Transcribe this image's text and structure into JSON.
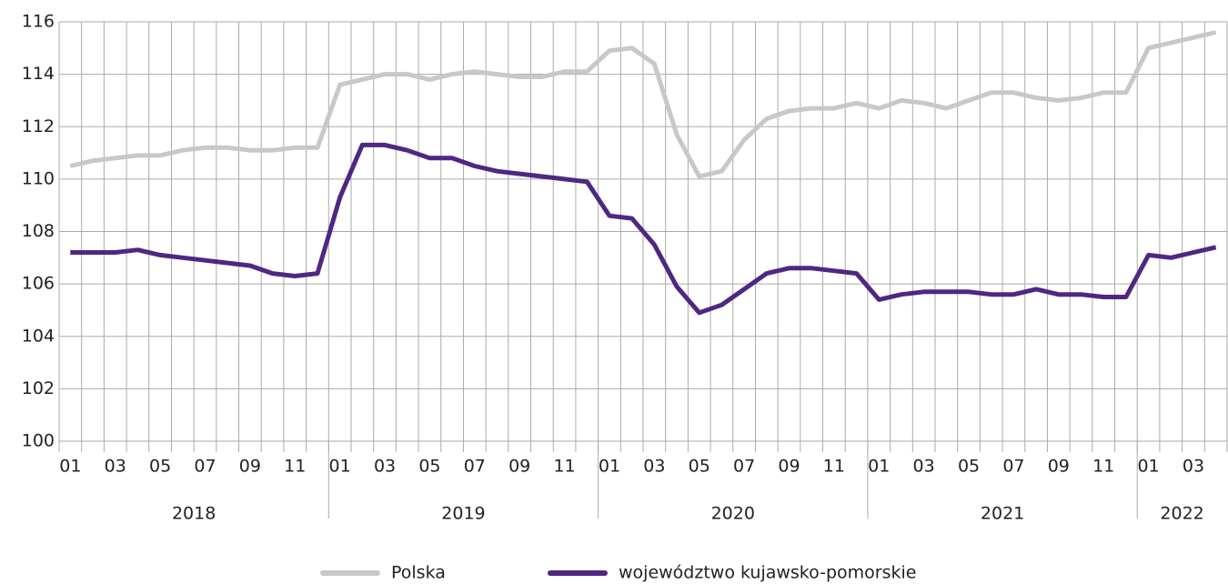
{
  "chart_data": {
    "type": "line",
    "categories": [
      "01",
      null,
      "03",
      null,
      "05",
      null,
      "07",
      null,
      "09",
      null,
      "11",
      null,
      "01",
      null,
      "03",
      null,
      "05",
      null,
      "07",
      null,
      "09",
      null,
      "11",
      null,
      "01",
      null,
      "03",
      null,
      "05",
      null,
      "07",
      null,
      "09",
      null,
      "11",
      null,
      "01",
      null,
      "03",
      null,
      "05",
      null,
      "07",
      null,
      "09",
      null,
      "11",
      null,
      "01",
      null,
      "03",
      null
    ],
    "years": [
      "2018",
      "2019",
      "2020",
      "2021",
      "2022"
    ],
    "series": [
      {
        "name": "Polska",
        "color": "#c8c8c8",
        "values": [
          110.5,
          110.7,
          110.8,
          110.9,
          110.9,
          111.1,
          111.2,
          111.2,
          111.1,
          111.1,
          111.2,
          111.2,
          113.6,
          113.8,
          114.0,
          114.0,
          113.8,
          114.0,
          114.1,
          114.0,
          113.9,
          113.9,
          114.1,
          114.1,
          114.9,
          115.0,
          114.4,
          111.7,
          110.1,
          110.3,
          111.5,
          112.3,
          112.6,
          112.7,
          112.7,
          112.9,
          112.7,
          113.0,
          112.9,
          112.7,
          113.0,
          113.3,
          113.3,
          113.1,
          113.0,
          113.1,
          113.3,
          113.3,
          115.0,
          115.2,
          115.4,
          115.6
        ]
      },
      {
        "name": "województwo kujawsko-pomorskie",
        "color": "#4f2783",
        "values": [
          107.2,
          107.2,
          107.2,
          107.3,
          107.1,
          107.0,
          106.9,
          106.8,
          106.7,
          106.4,
          106.3,
          106.4,
          109.3,
          111.3,
          111.3,
          111.1,
          110.8,
          110.8,
          110.5,
          110.3,
          110.2,
          110.1,
          110.0,
          109.9,
          108.6,
          108.5,
          107.5,
          105.9,
          104.9,
          105.2,
          105.8,
          106.4,
          106.6,
          106.6,
          106.5,
          106.4,
          105.4,
          105.6,
          105.7,
          105.7,
          105.7,
          105.6,
          105.6,
          105.8,
          105.6,
          105.6,
          105.5,
          105.5,
          107.1,
          107.0,
          107.2,
          107.4
        ]
      }
    ],
    "ylim": [
      100,
      116
    ],
    "yticks": [
      100,
      102,
      104,
      106,
      108,
      110,
      112,
      114,
      116
    ],
    "grid": true
  }
}
